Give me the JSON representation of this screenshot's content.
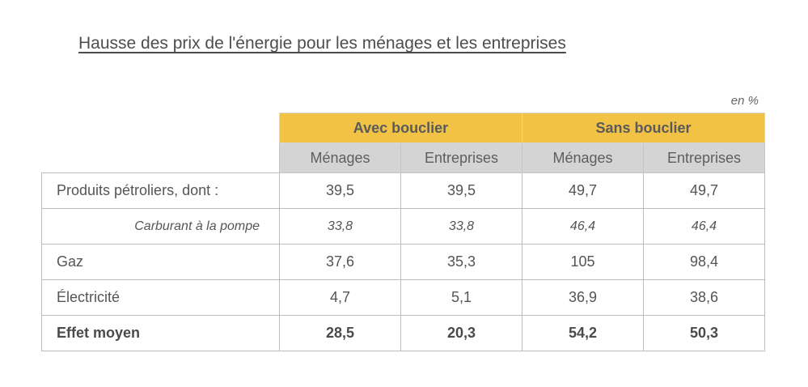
{
  "chart_data": {
    "type": "table",
    "title": "Hausse des prix de l'énergie pour les ménages et les entreprises",
    "unit": "en %",
    "column_groups": [
      {
        "name": "Avec bouclier",
        "columns": [
          "Ménages",
          "Entreprises"
        ]
      },
      {
        "name": "Sans bouclier",
        "columns": [
          "Ménages",
          "Entreprises"
        ]
      }
    ],
    "rows": [
      {
        "label": "Produits pétroliers, dont :",
        "values": [
          "39,5",
          "39,5",
          "49,7",
          "49,7"
        ]
      },
      {
        "label": "Carburant à la pompe",
        "values": [
          "33,8",
          "33,8",
          "46,4",
          "46,4"
        ]
      },
      {
        "label": "Gaz",
        "values": [
          "37,6",
          "35,3",
          "105",
          "98,4"
        ]
      },
      {
        "label": "Électricité",
        "values": [
          "4,7",
          "5,1",
          "36,9",
          "38,6"
        ]
      },
      {
        "label": "Effet moyen",
        "values": [
          "28,5",
          "20,3",
          "54,2",
          "50,3"
        ]
      }
    ]
  },
  "colors": {
    "header_group_bg": "#f2c245",
    "header_sub_bg": "#d4d4d4",
    "grid": "#bdbdbd"
  }
}
